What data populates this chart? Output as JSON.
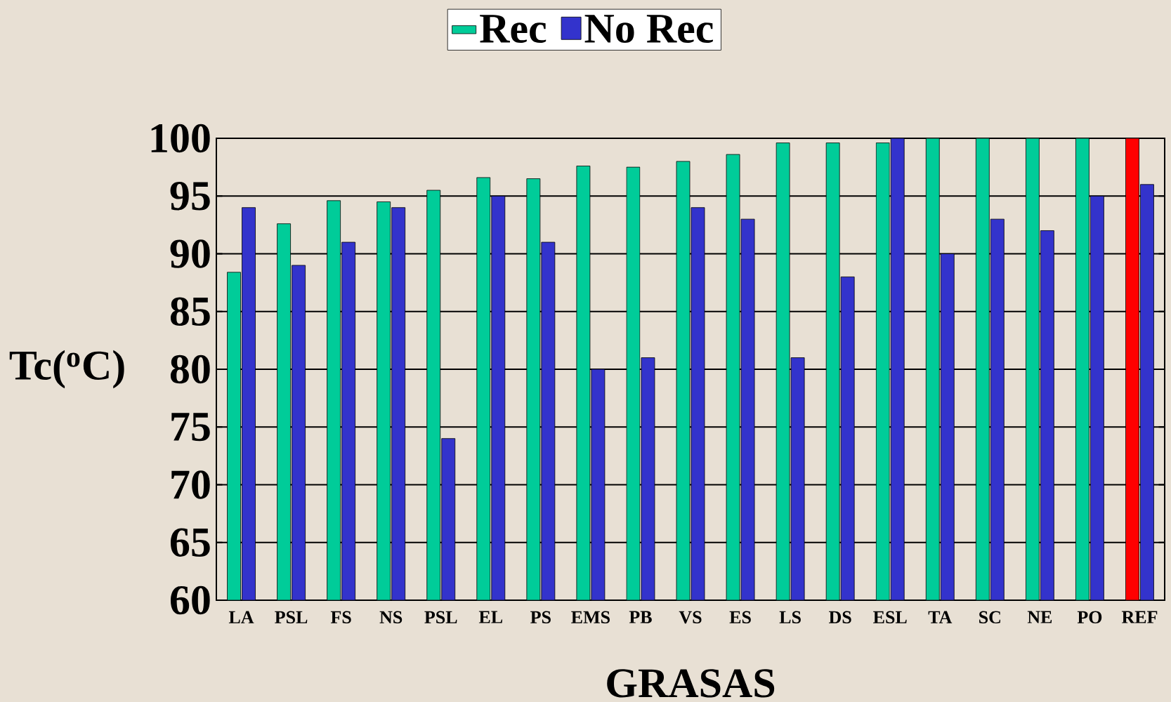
{
  "chart_data": {
    "type": "bar",
    "xlabel": "GRASAS",
    "ylabel": "Tc($^{o}$C)",
    "categories": [
      "LA",
      "PSL",
      "FS",
      "NS",
      "PSL",
      "EL",
      "PS",
      "EMS",
      "PB",
      "VS",
      "ES",
      "LS",
      "DS",
      "ESL",
      "TA",
      "SC",
      "NE",
      "PO",
      "REF"
    ],
    "series": [
      {
        "name": "Rec",
        "color": "#00cc99",
        "colors": [
          "#00cc99",
          "#00cc99",
          "#00cc99",
          "#00cc99",
          "#00cc99",
          "#00cc99",
          "#00cc99",
          "#00cc99",
          "#00cc99",
          "#00cc99",
          "#00cc99",
          "#00cc99",
          "#00cc99",
          "#00cc99",
          "#00cc99",
          "#00cc99",
          "#00cc99",
          "#00cc99",
          "#ff0000"
        ],
        "values": [
          88.4,
          92.6,
          94.6,
          94.5,
          95.5,
          96.6,
          96.5,
          97.6,
          97.5,
          98,
          98.6,
          99.6,
          99.6,
          99.6,
          100,
          100,
          100,
          100,
          100
        ]
      },
      {
        "name": "No Rec",
        "color": "#3333cc",
        "values": [
          94,
          89,
          91,
          94,
          74,
          95,
          91,
          80,
          81,
          94,
          93,
          81,
          88,
          100,
          90,
          93,
          92,
          95,
          96
        ]
      }
    ],
    "ylim": [
      60,
      100
    ],
    "yticks": [
      60,
      65,
      70,
      75,
      80,
      85,
      90,
      95,
      100
    ],
    "grid": "y",
    "legend": "top"
  }
}
